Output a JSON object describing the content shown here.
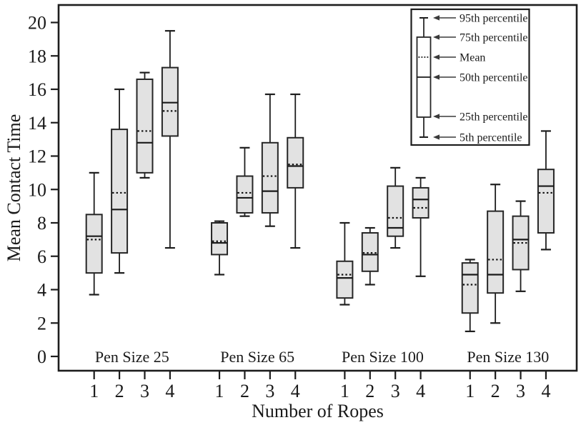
{
  "chart_data": {
    "type": "boxplot",
    "title": "",
    "ylabel": "Mean Contact Time",
    "xlabel": "Number of Ropes",
    "y_axis": {
      "min": 0,
      "max": 20,
      "ticks": [
        0,
        2,
        4,
        6,
        8,
        10,
        12,
        14,
        16,
        18,
        20
      ]
    },
    "rope_labels": [
      "1",
      "2",
      "3",
      "4"
    ],
    "groups": [
      {
        "label": "Pen Size 25",
        "boxes": [
          {
            "rope": "1",
            "p5": 3.7,
            "q1": 5.0,
            "median": 7.2,
            "mean": 7.0,
            "q3": 8.5,
            "p95": 11.0
          },
          {
            "rope": "2",
            "p5": 5.0,
            "q1": 6.2,
            "median": 8.8,
            "mean": 9.8,
            "q3": 13.6,
            "p95": 16.0
          },
          {
            "rope": "3",
            "p5": 10.7,
            "q1": 11.0,
            "median": 12.8,
            "mean": 13.5,
            "q3": 16.6,
            "p95": 17.0
          },
          {
            "rope": "4",
            "p5": 6.5,
            "q1": 13.2,
            "median": 15.2,
            "mean": 14.7,
            "q3": 17.3,
            "p95": 19.5
          }
        ]
      },
      {
        "label": "Pen Size 65",
        "boxes": [
          {
            "rope": "1",
            "p5": 4.9,
            "q1": 6.1,
            "median": 6.8,
            "mean": 6.9,
            "q3": 8.0,
            "p95": 8.1
          },
          {
            "rope": "2",
            "p5": 8.4,
            "q1": 8.6,
            "median": 9.5,
            "mean": 9.8,
            "q3": 10.8,
            "p95": 12.5
          },
          {
            "rope": "3",
            "p5": 7.8,
            "q1": 8.6,
            "median": 9.9,
            "mean": 10.8,
            "q3": 12.8,
            "p95": 15.7
          },
          {
            "rope": "4",
            "p5": 6.5,
            "q1": 10.1,
            "median": 11.4,
            "mean": 11.5,
            "q3": 13.1,
            "p95": 15.7
          }
        ]
      },
      {
        "label": "Pen Size 100",
        "boxes": [
          {
            "rope": "1",
            "p5": 3.1,
            "q1": 3.5,
            "median": 4.7,
            "mean": 4.9,
            "q3": 5.7,
            "p95": 8.0
          },
          {
            "rope": "2",
            "p5": 4.3,
            "q1": 5.1,
            "median": 6.1,
            "mean": 6.2,
            "q3": 7.4,
            "p95": 7.7
          },
          {
            "rope": "3",
            "p5": 6.5,
            "q1": 7.2,
            "median": 7.7,
            "mean": 8.3,
            "q3": 10.2,
            "p95": 11.3
          },
          {
            "rope": "4",
            "p5": 4.8,
            "q1": 8.3,
            "median": 9.4,
            "mean": 8.9,
            "q3": 10.1,
            "p95": 10.7
          }
        ]
      },
      {
        "label": "Pen Size 130",
        "boxes": [
          {
            "rope": "1",
            "p5": 1.5,
            "q1": 2.6,
            "median": 4.9,
            "mean": 4.3,
            "q3": 5.6,
            "p95": 5.8
          },
          {
            "rope": "2",
            "p5": 2.0,
            "q1": 3.8,
            "median": 4.9,
            "mean": 5.8,
            "q3": 8.7,
            "p95": 10.3
          },
          {
            "rope": "3",
            "p5": 3.9,
            "q1": 5.2,
            "median": 7.0,
            "mean": 6.8,
            "q3": 8.4,
            "p95": 9.3
          },
          {
            "rope": "4",
            "p5": 6.4,
            "q1": 7.4,
            "median": 10.2,
            "mean": 9.8,
            "q3": 11.2,
            "p95": 13.5
          }
        ]
      }
    ],
    "legend": {
      "items": [
        "95th percentile",
        "75th percentile",
        "Mean",
        "50th percentile",
        "25th percentile",
        "5th percentile"
      ]
    },
    "layout_hints": {
      "grid": false,
      "legend_position": "top-right",
      "group_labels_inside_plot": true
    },
    "colors": {
      "background": "#ffffff",
      "box_fill": "#e2e2e2",
      "line": "#1d1d1d",
      "text": "#1a1a1a"
    }
  }
}
